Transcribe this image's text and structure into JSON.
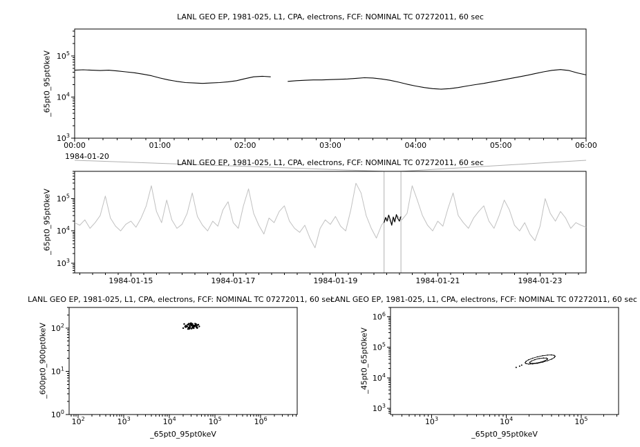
{
  "colors": {
    "axis": "#000000",
    "context_series": "#c0c0c0",
    "selection": "#b0b0b0",
    "series": "#000000"
  },
  "chart_data": [
    {
      "id": "timeseries-zoom",
      "type": "line",
      "title": "LANL GEO EP, 1981-025, L1, CPA, electrons, FCF: NOMINAL TC 07272011, 60 sec",
      "ylabel": "_65pt0_95pt0keV",
      "xlabel": "",
      "context_label": "1984-01-20",
      "xscale": "linear",
      "yscale": "log",
      "xlim": [
        0,
        6
      ],
      "ylim": [
        1000,
        450000
      ],
      "x_minor_step": 0.16666667,
      "x_ticks": [
        {
          "v": 0,
          "label": "00:00"
        },
        {
          "v": 1,
          "label": "01:00"
        },
        {
          "v": 2,
          "label": "02:00"
        },
        {
          "v": 3,
          "label": "03:00"
        },
        {
          "v": 4,
          "label": "04:00"
        },
        {
          "v": 5,
          "label": "05:00"
        },
        {
          "v": 6,
          "label": "06:00"
        }
      ],
      "y_ticks": [
        {
          "v": 1000,
          "label": "10^3"
        },
        {
          "v": 10000,
          "label": "10^4"
        },
        {
          "v": 100000,
          "label": "10^5"
        }
      ],
      "series": [
        {
          "name": "electrons-65-95keV-zoom",
          "color": "#000000",
          "width": 1.1,
          "x": [
            0,
            0.1,
            0.2,
            0.3,
            0.4,
            0.5,
            0.6,
            0.7,
            0.8,
            0.9,
            1,
            1.1,
            1.2,
            1.3,
            1.4,
            1.5,
            1.6,
            1.7,
            1.8,
            1.9,
            2,
            2.1,
            2.2,
            2.3,
            2.4,
            2.5,
            2.6,
            2.7,
            2.8,
            2.9,
            3,
            3.1,
            3.2,
            3.3,
            3.4,
            3.5,
            3.6,
            3.7,
            3.8,
            3.9,
            4,
            4.1,
            4.2,
            4.3,
            4.4,
            4.5,
            4.6,
            4.7,
            4.8,
            4.9,
            5,
            5.1,
            5.2,
            5.3,
            5.4,
            5.5,
            5.6,
            5.7,
            5.8,
            5.9,
            6
          ],
          "y": [
            45000,
            46000,
            45000,
            44000,
            45000,
            43000,
            41000,
            39000,
            36000,
            33000,
            29000,
            26000,
            24000,
            22500,
            22000,
            21500,
            22000,
            22500,
            23500,
            25000,
            28000,
            31000,
            32000,
            31000,
            null,
            24000,
            25000,
            25500,
            26000,
            26000,
            26500,
            27000,
            27500,
            28500,
            29500,
            29000,
            27500,
            25500,
            23000,
            20500,
            18500,
            17000,
            16000,
            15500,
            16000,
            17000,
            18500,
            20000,
            21500,
            23500,
            25500,
            28000,
            30500,
            33500,
            37000,
            41000,
            44500,
            46500,
            44000,
            38500,
            34500
          ]
        }
      ]
    },
    {
      "id": "timeseries-context",
      "type": "line",
      "title": "LANL GEO EP, 1981-025, L1, CPA, electrons, FCF: NOMINAL TC 07272011, 60 sec",
      "ylabel": "_65pt0_95pt0keV",
      "xlabel": "",
      "xscale": "linear",
      "yscale": "log",
      "xlim": [
        13.9,
        23.9
      ],
      "ylim": [
        500,
        700000
      ],
      "x_minor_step": 0.25,
      "x_ticks": [
        {
          "v": 15,
          "label": "1984-01-15"
        },
        {
          "v": 17,
          "label": "1984-01-17"
        },
        {
          "v": 19,
          "label": "1984-01-19"
        },
        {
          "v": 21,
          "label": "1984-01-21"
        },
        {
          "v": 23,
          "label": "1984-01-23"
        }
      ],
      "y_ticks": [
        {
          "v": 1000,
          "label": "10^3"
        },
        {
          "v": 10000,
          "label": "10^4"
        },
        {
          "v": 100000,
          "label": "10^5"
        }
      ],
      "selection": {
        "x1": 19.95,
        "x2": 20.28,
        "color": "#b0b0b0"
      },
      "series": [
        {
          "name": "electrons-65-95keV-context",
          "color": "#c0c0c0",
          "width": 1,
          "x": [
            13.9,
            14,
            14.1,
            14.2,
            14.3,
            14.4,
            14.5,
            14.6,
            14.7,
            14.8,
            14.9,
            15,
            15.1,
            15.2,
            15.3,
            15.4,
            15.5,
            15.6,
            15.7,
            15.8,
            15.9,
            16,
            16.1,
            16.2,
            16.3,
            16.4,
            16.5,
            16.6,
            16.7,
            16.8,
            16.9,
            17,
            17.1,
            17.2,
            17.3,
            17.4,
            17.5,
            17.6,
            17.7,
            17.8,
            17.9,
            18,
            18.1,
            18.2,
            18.3,
            18.4,
            18.5,
            18.6,
            18.7,
            18.8,
            18.9,
            19,
            19.1,
            19.2,
            19.3,
            19.4,
            19.5,
            19.6,
            19.7,
            19.8,
            19.9,
            20,
            20.1,
            20.2,
            20.3,
            20.4,
            20.5,
            20.6,
            20.7,
            20.8,
            20.9,
            21,
            21.1,
            21.2,
            21.3,
            21.4,
            21.5,
            21.6,
            21.7,
            21.8,
            21.9,
            22,
            22.1,
            22.2,
            22.3,
            22.4,
            22.5,
            22.6,
            22.7,
            22.8,
            22.9,
            23,
            23.1,
            23.2,
            23.3,
            23.4,
            23.5,
            23.6,
            23.7,
            23.8,
            23.9
          ],
          "y": [
            18000,
            15000,
            22000,
            12000,
            18000,
            30000,
            120000,
            25000,
            14000,
            10000,
            16000,
            20000,
            13000,
            25000,
            60000,
            250000,
            40000,
            18000,
            90000,
            22000,
            12000,
            16000,
            35000,
            150000,
            28000,
            15000,
            10000,
            20000,
            14000,
            45000,
            80000,
            18000,
            12000,
            60000,
            200000,
            35000,
            15000,
            8000,
            25000,
            18000,
            40000,
            60000,
            20000,
            12000,
            9000,
            15000,
            6000,
            3000,
            12000,
            22000,
            16000,
            28000,
            14000,
            10000,
            45000,
            300000,
            150000,
            30000,
            12000,
            6000,
            15000,
            25000,
            18000,
            30000,
            22000,
            35000,
            250000,
            90000,
            30000,
            15000,
            10000,
            20000,
            14000,
            50000,
            150000,
            30000,
            18000,
            12000,
            25000,
            40000,
            60000,
            20000,
            12000,
            30000,
            90000,
            45000,
            15000,
            10000,
            18000,
            8000,
            5000,
            14000,
            100000,
            35000,
            20000,
            40000,
            25000,
            12000,
            18000,
            15000,
            13000
          ]
        },
        {
          "name": "highlighted-interval",
          "color": "#000000",
          "width": 1.2,
          "x": [
            19.95,
            19.98,
            20.01,
            20.04,
            20.07,
            20.1,
            20.13,
            20.16,
            20.19,
            20.22,
            20.25,
            20.28
          ],
          "y": [
            18000,
            26000,
            20000,
            31000,
            22000,
            15000,
            27000,
            19000,
            32000,
            24000,
            20000,
            28000
          ]
        }
      ]
    },
    {
      "id": "scatter-600-900",
      "type": "scatter",
      "title": "LANL GEO EP, 1981-025, L1, CPA, electrons, FCF: NOMINAL TC 07272011, 60 sec",
      "ylabel": "_600pt0_900pt0keV",
      "xlabel": "_65pt0_95pt0keV",
      "xscale": "log",
      "yscale": "log",
      "xlim": [
        63.1,
        6310000
      ],
      "ylim": [
        1,
        300
      ],
      "x_ticks": [
        {
          "v": 100,
          "label": "10^2"
        },
        {
          "v": 1000,
          "label": "10^3"
        },
        {
          "v": 10000,
          "label": "10^4"
        },
        {
          "v": 100000,
          "label": "10^5"
        },
        {
          "v": 1000000,
          "label": "10^6"
        }
      ],
      "y_ticks": [
        {
          "v": 1,
          "label": "10^0"
        },
        {
          "v": 10,
          "label": "10^1"
        },
        {
          "v": 100,
          "label": "10^2"
        }
      ],
      "series": [
        {
          "name": "scatter-65-95-vs-600-900",
          "color": "#000000",
          "dot": 1.2,
          "connect": false,
          "x": [
            20000,
            22000,
            25000,
            28000,
            30000,
            32000,
            35000,
            38000,
            40000,
            28000,
            26000,
            24000,
            31000,
            33000,
            36000,
            29000,
            27000,
            45000,
            42000,
            39000,
            23000,
            21000,
            34000,
            37000,
            30000,
            28500,
            32500,
            26500,
            41000,
            35500,
            33500,
            29500,
            25500,
            38500,
            31500,
            27500,
            36500,
            30500,
            24500,
            43000,
            22500,
            34500,
            40500,
            28200,
            32200,
            37500,
            26200,
            30200,
            35200,
            29800
          ],
          "y": [
            100,
            110,
            120,
            105,
            115,
            125,
            108,
            118,
            112,
            98,
            122,
            107,
            117,
            103,
            113,
            128,
            96,
            109,
            119,
            104,
            114,
            124,
            99,
            111,
            121,
            106,
            116,
            126,
            102,
            112,
            108,
            118,
            95,
            123,
            101,
            113,
            127,
            97,
            110,
            120,
            105,
            115,
            100,
            125,
            108,
            118,
            103,
            122,
            112,
            130
          ]
        }
      ]
    },
    {
      "id": "scatter-45-65",
      "type": "scatter",
      "title": "LANL GEO EP, 1981-025, L1, CPA, electrons, FCF: NOMINAL TC 07272011, 60 sec",
      "ylabel": "_45pt0_65pt0keV",
      "xlabel": "_65pt0_95pt0keV",
      "xscale": "log",
      "yscale": "log",
      "xlim": [
        282,
        316000
      ],
      "ylim": [
        631,
        2000000
      ],
      "x_ticks": [
        {
          "v": 1000,
          "label": "10^3"
        },
        {
          "v": 10000,
          "label": "10^4"
        },
        {
          "v": 100000,
          "label": "10^5"
        }
      ],
      "y_ticks": [
        {
          "v": 1000,
          "label": "10^3"
        },
        {
          "v": 10000,
          "label": "10^4"
        },
        {
          "v": 100000,
          "label": "10^5"
        },
        {
          "v": 1000000,
          "label": "10^6"
        }
      ],
      "series": [
        {
          "name": "scatter-loop-outer",
          "color": "#000000",
          "dot": 0.8,
          "connect": true,
          "width": 0.9,
          "x": [
            44700,
            43450,
            39990,
            35480,
            30480,
            25940,
            22390,
            19770,
            18280,
            17780,
            18280,
            19860,
            22490,
            26180,
            30760,
            35650,
            40370,
            43650,
            44700
          ],
          "y": [
            50700,
            54330,
            56100,
            55650,
            53000,
            48640,
            43700,
            38720,
            34430,
            31260,
            29170,
            28180,
            28480,
            29990,
            32700,
            36390,
            41020,
            46030,
            50700
          ]
        },
        {
          "name": "scatter-loop-inner",
          "color": "#000000",
          "dot": 0.8,
          "connect": true,
          "width": 0.9,
          "x": [
            35480,
            34280,
            31260,
            27420,
            23990,
            21580,
            20460,
            20800,
            22490,
            25410,
            29110,
            32730,
            35080
          ],
          "y": [
            41980,
            44260,
            44460,
            42560,
            39170,
            35320,
            32140,
            30130,
            29510,
            30480,
            32810,
            36220,
            39990
          ]
        },
        {
          "name": "scatter-strays",
          "color": "#000000",
          "dot": 1,
          "connect": false,
          "x": [
            15000,
            16000,
            13500
          ],
          "y": [
            24000,
            26000,
            22000
          ]
        }
      ]
    }
  ]
}
